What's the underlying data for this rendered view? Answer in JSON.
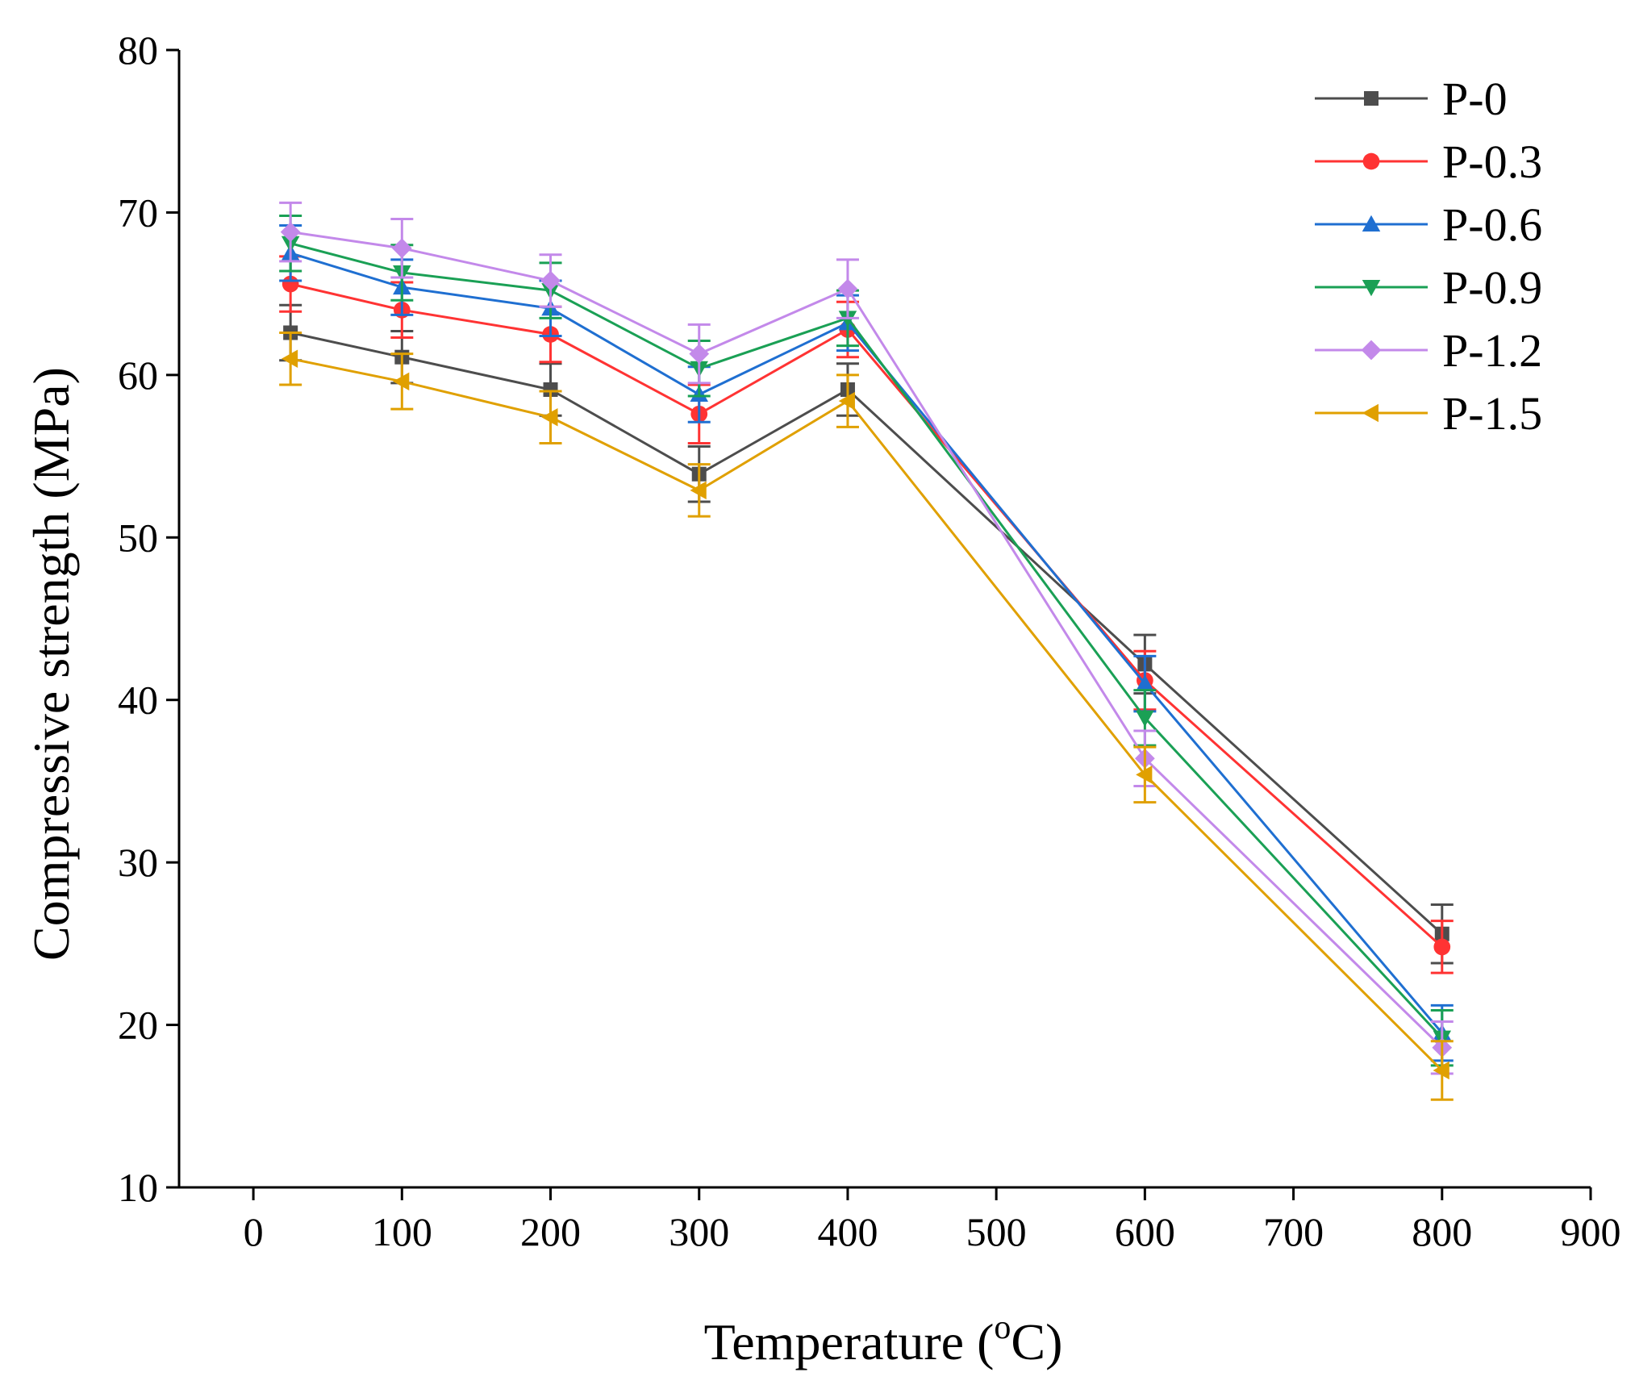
{
  "chart_data": {
    "type": "line",
    "title": "",
    "xlabel_main": "Temperature (",
    "xlabel_sup": "o",
    "xlabel_end": "C)",
    "ylabel": "Compressive strength (MPa)",
    "xlim": [
      -50,
      900
    ],
    "ylim": [
      10,
      80
    ],
    "x_ticks": [
      "0",
      "100",
      "200",
      "300",
      "400",
      "500",
      "600",
      "700",
      "800",
      "900"
    ],
    "y_ticks": [
      "10",
      "20",
      "30",
      "40",
      "50",
      "60",
      "70",
      "80"
    ],
    "legend_position": "top-right",
    "x": [
      25,
      100,
      200,
      300,
      400,
      600,
      800
    ],
    "series": [
      {
        "name": "P-0",
        "color": "#4d4d4d",
        "marker": "square",
        "values": [
          62.6,
          61.1,
          59.1,
          53.9,
          59.1,
          42.2,
          25.6
        ],
        "errors": [
          1.7,
          1.6,
          1.6,
          1.7,
          1.6,
          1.8,
          1.8
        ]
      },
      {
        "name": "P-0.3",
        "color": "#ff3333",
        "marker": "circle",
        "values": [
          65.6,
          64.0,
          62.5,
          57.6,
          62.8,
          41.2,
          24.8
        ],
        "errors": [
          1.7,
          1.7,
          1.7,
          1.8,
          1.7,
          1.8,
          1.6
        ]
      },
      {
        "name": "P-0.6",
        "color": "#1f6fd1",
        "marker": "triangle-up",
        "values": [
          67.5,
          65.4,
          64.1,
          58.8,
          63.2,
          41.0,
          19.5
        ],
        "errors": [
          1.7,
          1.7,
          1.7,
          1.7,
          1.7,
          1.7,
          1.7
        ]
      },
      {
        "name": "P-0.9",
        "color": "#1aa055",
        "marker": "triangle-down",
        "values": [
          68.1,
          66.3,
          65.2,
          60.4,
          63.5,
          38.9,
          19.2
        ],
        "errors": [
          1.7,
          1.7,
          1.7,
          1.7,
          1.7,
          1.7,
          1.7
        ]
      },
      {
        "name": "P-1.2",
        "color": "#c389ea",
        "marker": "diamond",
        "values": [
          68.8,
          67.8,
          65.8,
          61.3,
          65.3,
          36.4,
          18.6
        ],
        "errors": [
          1.8,
          1.8,
          1.6,
          1.8,
          1.8,
          1.7,
          1.6
        ]
      },
      {
        "name": "P-1.5",
        "color": "#e0a000",
        "marker": "triangle-left",
        "values": [
          61.0,
          59.6,
          57.4,
          52.9,
          58.4,
          35.4,
          17.2
        ],
        "errors": [
          1.6,
          1.7,
          1.6,
          1.6,
          1.6,
          1.7,
          1.8
        ]
      }
    ]
  }
}
